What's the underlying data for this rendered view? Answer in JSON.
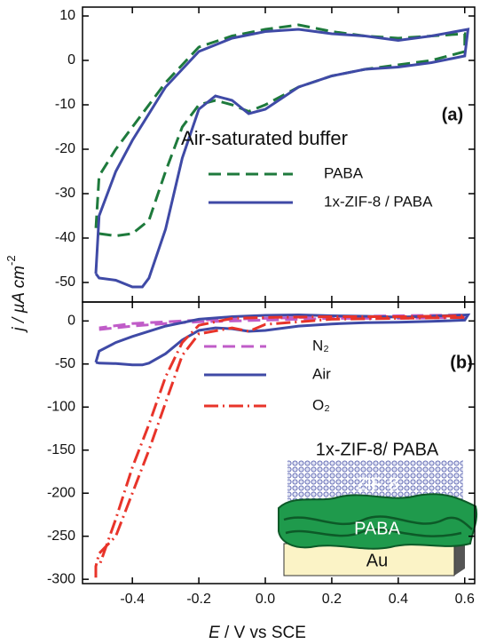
{
  "chart_data": [
    {
      "type": "line",
      "annotations": [
        "(a)",
        "Air-saturated buffer"
      ],
      "xlim": [
        -0.55,
        0.63
      ],
      "xticks": [
        -0.4,
        -0.2,
        {
          "value": 0,
          "label": "0.0"
        },
        0.2,
        0.4,
        0.6
      ],
      "ylim": [
        -54.4,
        12
      ],
      "yticks": [
        10,
        0,
        -10,
        -20,
        -30,
        -40,
        -50
      ],
      "series": [
        {
          "name": "PABA",
          "color": "#1e7a3c",
          "style": "dashed",
          "x": [
            -0.5,
            -0.45,
            -0.4,
            -0.35,
            -0.3,
            -0.25,
            -0.2,
            -0.15,
            -0.1,
            -0.05,
            0,
            0.1,
            0.2,
            0.3,
            0.4,
            0.5,
            0.6,
            0.6,
            0.5,
            0.4,
            0.3,
            0.2,
            0.1,
            0,
            -0.1,
            -0.2,
            -0.3,
            -0.4,
            -0.45,
            -0.5,
            -0.51
          ],
          "values": [
            -39,
            -39.5,
            -39,
            -36,
            -25,
            -15,
            -10,
            -9,
            -10,
            -11.5,
            -10,
            -6,
            -3.5,
            -2,
            -1,
            0,
            2,
            6,
            5.5,
            5,
            5.5,
            6.5,
            8,
            7,
            5.5,
            3,
            -5,
            -15,
            -20,
            -26,
            -38
          ]
        },
        {
          "name": "1x-ZIF-8 / PABA",
          "color": "#3f4aa6",
          "style": "solid",
          "x": [
            -0.51,
            -0.5,
            -0.45,
            -0.4,
            -0.37,
            -0.35,
            -0.3,
            -0.25,
            -0.2,
            -0.15,
            -0.1,
            -0.05,
            0,
            0.1,
            0.2,
            0.3,
            0.4,
            0.5,
            0.6,
            0.61,
            0.5,
            0.4,
            0.3,
            0.2,
            0.1,
            0,
            -0.1,
            -0.2,
            -0.3,
            -0.4,
            -0.45,
            -0.5,
            -0.51
          ],
          "values": [
            -48,
            -49,
            -49.5,
            -51,
            -51,
            -49,
            -38,
            -22,
            -11,
            -8,
            -9,
            -12,
            -11,
            -6,
            -3.5,
            -2,
            -1.5,
            -0.5,
            1,
            7,
            5.5,
            4.5,
            5.5,
            6,
            7,
            6.5,
            5,
            2,
            -6,
            -18,
            -25,
            -35,
            -48
          ]
        }
      ]
    },
    {
      "type": "line",
      "annotations": [
        "(b)"
      ],
      "x_label_symbol": "E",
      "x_label_unit": " / V vs SCE",
      "y_label": "j / µA cm",
      "y_label_sup": "-2",
      "xlim": [
        -0.55,
        0.63
      ],
      "xticks": [
        -0.4,
        -0.2,
        {
          "value": 0,
          "label": "0.0"
        },
        0.2,
        0.4,
        0.6
      ],
      "ylim": [
        -305,
        22
      ],
      "yticks": [
        0,
        -50,
        -100,
        -150,
        -200,
        -250,
        -300
      ],
      "series": [
        {
          "name": "N₂",
          "color": "#c05cc8",
          "style": "dashed",
          "x": [
            -0.5,
            -0.4,
            -0.3,
            -0.2,
            0,
            0.2,
            0.4,
            0.6,
            0.6,
            0.4,
            0.2,
            0,
            -0.2,
            -0.4,
            -0.5
          ],
          "values": [
            -10,
            -6,
            -3,
            -1,
            1,
            3,
            3,
            4,
            7,
            6,
            5,
            3,
            1,
            -3,
            -8
          ]
        },
        {
          "name": "Air",
          "color": "#3f4aa6",
          "style": "solid",
          "x": [
            -0.51,
            -0.5,
            -0.45,
            -0.4,
            -0.37,
            -0.35,
            -0.3,
            -0.25,
            -0.2,
            -0.15,
            -0.1,
            -0.05,
            0,
            0.1,
            0.2,
            0.3,
            0.4,
            0.5,
            0.6,
            0.61,
            0.5,
            0.4,
            0.3,
            0.2,
            0.1,
            0,
            -0.1,
            -0.2,
            -0.3,
            -0.4,
            -0.45,
            -0.5,
            -0.51
          ],
          "values": [
            -48,
            -49,
            -49.5,
            -51,
            -51,
            -49,
            -38,
            -22,
            -11,
            -8,
            -9,
            -12,
            -11,
            -6,
            -3.5,
            -2,
            -1.5,
            -0.5,
            1,
            7,
            5.5,
            4.5,
            5.5,
            6,
            7,
            6.5,
            5,
            2,
            -6,
            -18,
            -25,
            -35,
            -48
          ]
        },
        {
          "name": "O₂",
          "color": "#e8342a",
          "style": "dashdot",
          "x": [
            -0.51,
            -0.51,
            -0.5,
            -0.45,
            -0.4,
            -0.35,
            -0.3,
            -0.25,
            -0.2,
            -0.1,
            -0.05,
            0,
            0.2,
            0.4,
            0.6,
            0.6,
            0.4,
            0.2,
            0,
            -0.1,
            -0.2,
            -0.25,
            -0.3,
            -0.35,
            -0.4,
            -0.45,
            -0.5
          ],
          "values": [
            -298,
            -285,
            -270,
            -250,
            -200,
            -150,
            -95,
            -40,
            -15,
            -8,
            -12,
            -4,
            2,
            3,
            4,
            6,
            5,
            5,
            4,
            3,
            -5,
            -25,
            -65,
            -120,
            -170,
            -230,
            -285
          ]
        }
      ]
    }
  ],
  "inset": {
    "title": "1x-ZIF-8/ PABA",
    "layers": [
      "ZIF-8",
      "PABA",
      "Au"
    ]
  }
}
